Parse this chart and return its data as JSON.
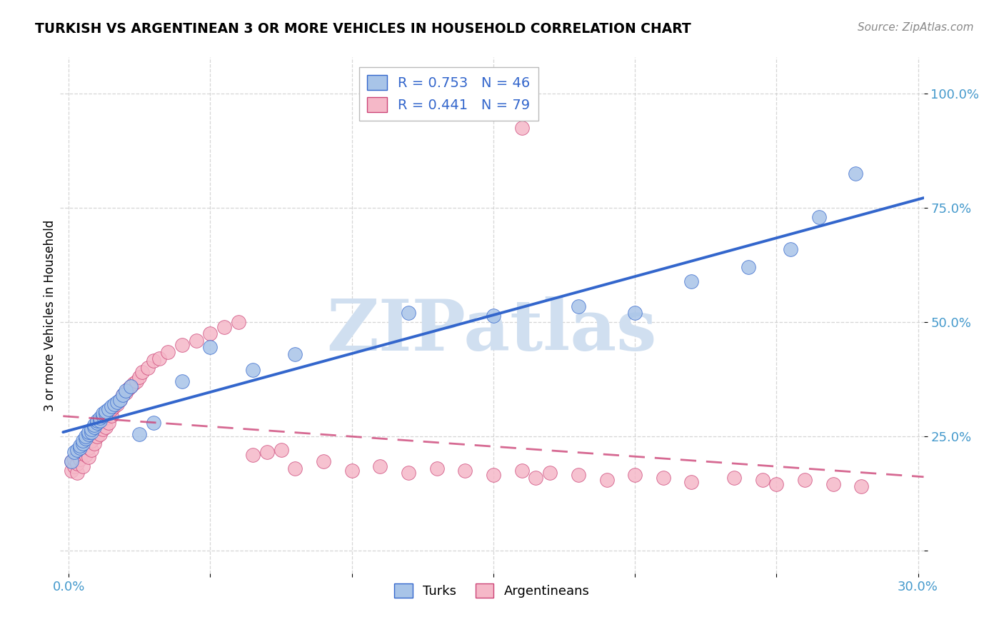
{
  "title": "TURKISH VS ARGENTINEAN 3 OR MORE VEHICLES IN HOUSEHOLD CORRELATION CHART",
  "source": "Source: ZipAtlas.com",
  "ylabel": "3 or more Vehicles in Household",
  "xlim": [
    -0.003,
    0.302
  ],
  "ylim": [
    -0.05,
    1.08
  ],
  "x_ticks": [
    0.0,
    0.05,
    0.1,
    0.15,
    0.2,
    0.25,
    0.3
  ],
  "x_tick_labels": [
    "0.0%",
    "",
    "",
    "",
    "",
    "",
    "30.0%"
  ],
  "y_ticks": [
    0.0,
    0.25,
    0.5,
    0.75,
    1.0
  ],
  "y_tick_labels": [
    "",
    "25.0%",
    "50.0%",
    "75.0%",
    "100.0%"
  ],
  "grid_color": "#cccccc",
  "background_color": "#ffffff",
  "turks_color": "#a8c4e8",
  "argentineans_color": "#f5b8c8",
  "turks_line_color": "#3366cc",
  "argentineans_line_color": "#cc4477",
  "tick_color": "#4499cc",
  "r_val_color": "#3366cc",
  "legend_label_turks": "Turks",
  "legend_label_arg": "Argentineans",
  "turks_R": 0.753,
  "turks_N": 46,
  "arg_R": 0.441,
  "arg_N": 79,
  "turks_x": [
    0.001,
    0.002,
    0.003,
    0.004,
    0.004,
    0.005,
    0.005,
    0.006,
    0.006,
    0.007,
    0.007,
    0.008,
    0.008,
    0.009,
    0.009,
    0.01,
    0.01,
    0.011,
    0.011,
    0.012,
    0.012,
    0.013,
    0.013,
    0.014,
    0.015,
    0.016,
    0.017,
    0.018,
    0.019,
    0.02,
    0.022,
    0.025,
    0.03,
    0.04,
    0.05,
    0.065,
    0.08,
    0.12,
    0.15,
    0.18,
    0.2,
    0.22,
    0.24,
    0.255,
    0.265,
    0.278
  ],
  "turks_y": [
    0.195,
    0.215,
    0.22,
    0.225,
    0.23,
    0.235,
    0.24,
    0.245,
    0.25,
    0.255,
    0.26,
    0.26,
    0.265,
    0.27,
    0.275,
    0.28,
    0.285,
    0.285,
    0.29,
    0.295,
    0.3,
    0.3,
    0.305,
    0.31,
    0.315,
    0.32,
    0.325,
    0.33,
    0.34,
    0.35,
    0.36,
    0.255,
    0.28,
    0.37,
    0.445,
    0.395,
    0.43,
    0.52,
    0.515,
    0.535,
    0.52,
    0.59,
    0.62,
    0.66,
    0.73,
    0.825
  ],
  "arg_x": [
    0.001,
    0.001,
    0.002,
    0.002,
    0.003,
    0.003,
    0.003,
    0.004,
    0.004,
    0.005,
    0.005,
    0.005,
    0.006,
    0.006,
    0.007,
    0.007,
    0.008,
    0.008,
    0.008,
    0.009,
    0.009,
    0.01,
    0.01,
    0.011,
    0.011,
    0.012,
    0.012,
    0.013,
    0.013,
    0.014,
    0.014,
    0.015,
    0.015,
    0.016,
    0.017,
    0.018,
    0.019,
    0.02,
    0.021,
    0.022,
    0.023,
    0.024,
    0.025,
    0.026,
    0.028,
    0.03,
    0.032,
    0.035,
    0.04,
    0.045,
    0.05,
    0.055,
    0.06,
    0.065,
    0.07,
    0.075,
    0.08,
    0.09,
    0.1,
    0.11,
    0.12,
    0.13,
    0.14,
    0.15,
    0.16,
    0.165,
    0.17,
    0.18,
    0.19,
    0.2,
    0.21,
    0.22,
    0.235,
    0.245,
    0.25,
    0.26,
    0.27,
    0.28,
    0.16
  ],
  "arg_y": [
    0.195,
    0.175,
    0.185,
    0.2,
    0.17,
    0.19,
    0.21,
    0.2,
    0.22,
    0.185,
    0.215,
    0.225,
    0.21,
    0.23,
    0.205,
    0.225,
    0.22,
    0.24,
    0.255,
    0.235,
    0.26,
    0.25,
    0.27,
    0.255,
    0.275,
    0.265,
    0.285,
    0.27,
    0.29,
    0.28,
    0.3,
    0.295,
    0.31,
    0.315,
    0.32,
    0.33,
    0.34,
    0.345,
    0.355,
    0.36,
    0.365,
    0.37,
    0.38,
    0.39,
    0.4,
    0.415,
    0.42,
    0.435,
    0.45,
    0.46,
    0.475,
    0.49,
    0.5,
    0.21,
    0.215,
    0.22,
    0.18,
    0.195,
    0.175,
    0.185,
    0.17,
    0.18,
    0.175,
    0.165,
    0.175,
    0.16,
    0.17,
    0.165,
    0.155,
    0.165,
    0.16,
    0.15,
    0.16,
    0.155,
    0.145,
    0.155,
    0.145,
    0.14,
    0.925
  ],
  "watermark_text": "ZIPatlas",
  "watermark_color": "#d0dff0"
}
